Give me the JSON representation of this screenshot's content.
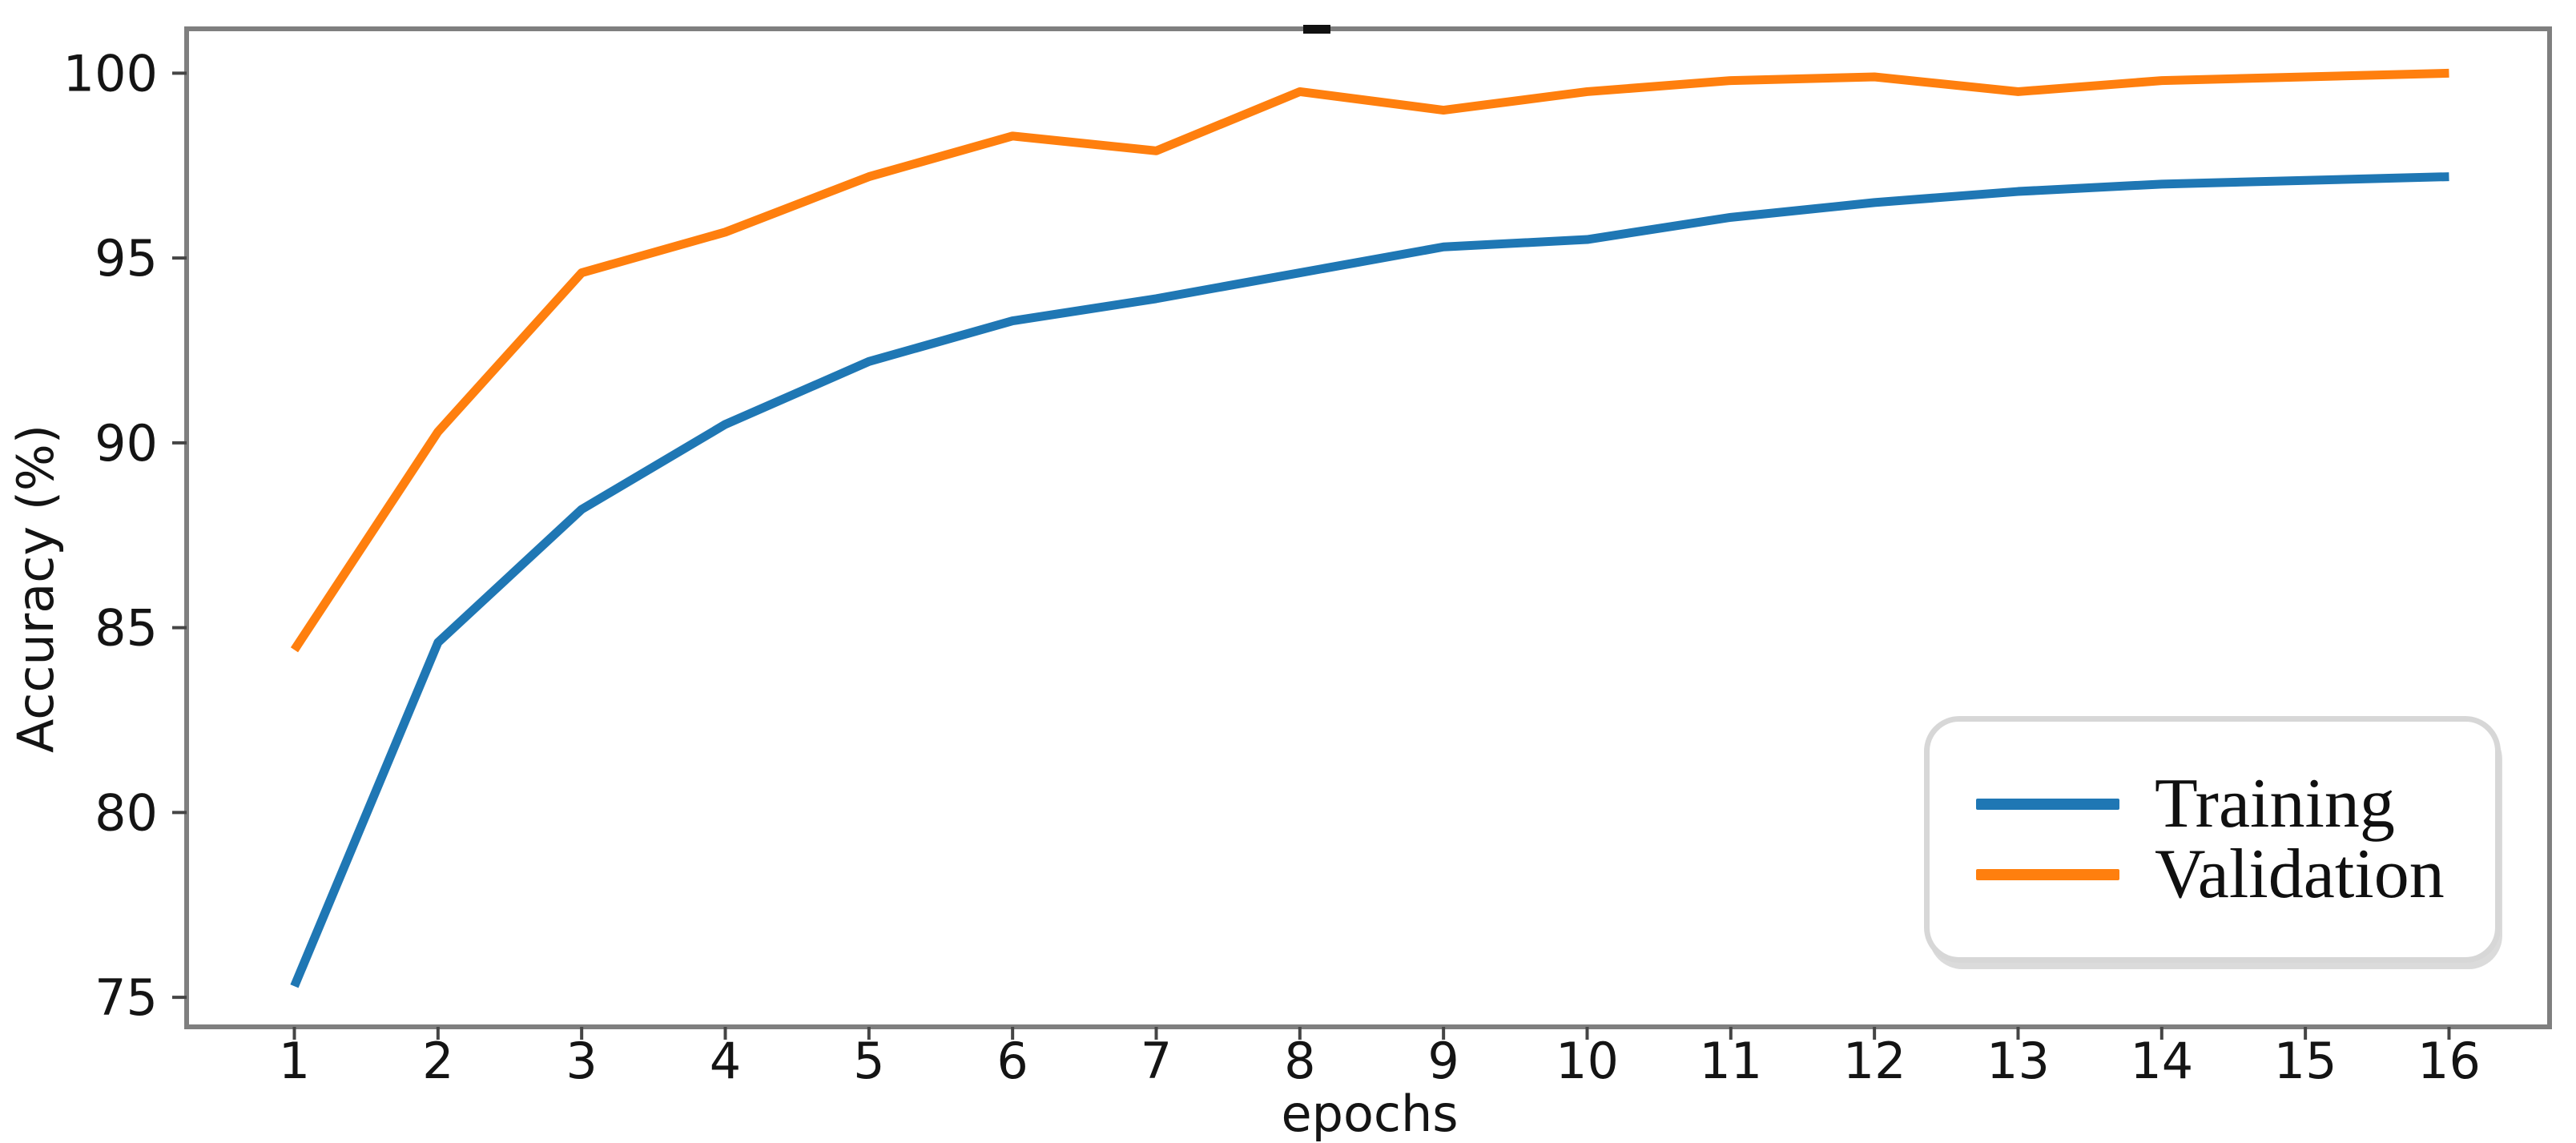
{
  "chart_data": {
    "type": "line",
    "title": "",
    "xlabel": "epochs",
    "ylabel": "Accuracy (%)",
    "x": [
      1,
      2,
      3,
      4,
      5,
      6,
      7,
      8,
      9,
      10,
      11,
      12,
      13,
      14,
      15,
      16
    ],
    "series": [
      {
        "name": "Training",
        "color": "#1f77b4",
        "values": [
          75.3,
          84.6,
          88.2,
          90.5,
          92.2,
          93.3,
          93.9,
          94.6,
          95.3,
          95.5,
          96.1,
          96.5,
          96.8,
          97.0,
          97.1,
          97.2
        ]
      },
      {
        "name": "Validation",
        "color": "#ff7f0e",
        "values": [
          84.4,
          90.3,
          94.6,
          95.7,
          97.2,
          98.3,
          97.9,
          99.5,
          99.0,
          99.5,
          99.8,
          99.9,
          99.5,
          99.8,
          99.9,
          100.0
        ]
      }
    ],
    "xlim": [
      0.25,
      16.7
    ],
    "ylim": [
      74.2,
      101.2
    ],
    "xticks": [
      1,
      2,
      3,
      4,
      5,
      6,
      7,
      8,
      9,
      10,
      11,
      12,
      13,
      14,
      15,
      16
    ],
    "yticks": [
      75,
      80,
      85,
      90,
      95,
      100
    ],
    "grid": false,
    "legend_position": "lower right",
    "legend_entries": [
      "Training",
      "Validation"
    ]
  },
  "colors": {
    "training_line": "#1f77b4",
    "validation_line": "#ff7f0e",
    "spine": "#7f7f7f",
    "tick": "#454545",
    "text": "#141414",
    "legend_border": "#d7d7d7",
    "background": "#ffffff"
  }
}
